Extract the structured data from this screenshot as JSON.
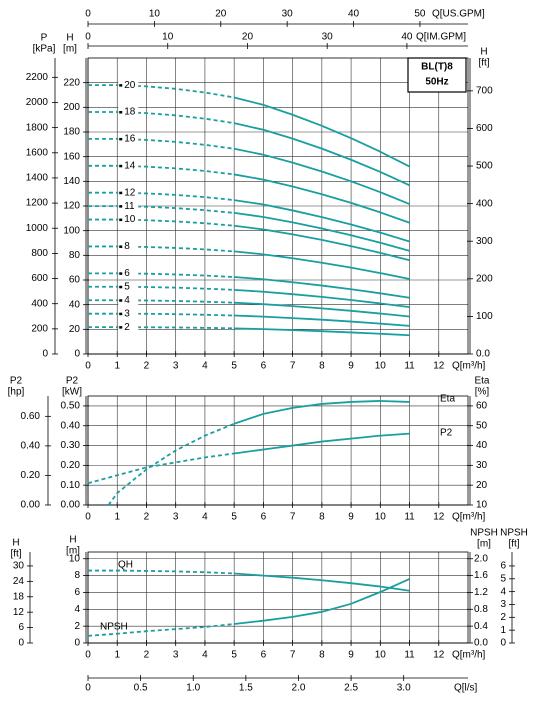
{
  "chart_data": [
    {
      "type": "line",
      "box_label": [
        "BL(T)8",
        "50Hz"
      ],
      "color": "#1a9fa0",
      "dashed_until": 5,
      "grid": true,
      "x": [
        0,
        1,
        2,
        3,
        4,
        5,
        6,
        7,
        8,
        9,
        10,
        11
      ],
      "xlim": [
        0,
        13
      ],
      "xticks": [
        0,
        1,
        2,
        3,
        4,
        5,
        6,
        7,
        8,
        9,
        10,
        11,
        12
      ],
      "x_label": "Q[m³/h]",
      "ylim": [
        0,
        240
      ],
      "yticks": [
        0,
        20,
        40,
        60,
        80,
        100,
        120,
        140,
        160,
        180,
        200,
        220
      ],
      "y_label": [
        "H",
        "[m]"
      ],
      "kpa_lim": [
        0,
        2353.7
      ],
      "kpa_ticks": [
        0,
        200,
        400,
        600,
        800,
        1000,
        1200,
        1400,
        1600,
        1800,
        2000,
        2200
      ],
      "kpa_label": [
        "P",
        "[kPa]"
      ],
      "ft_lim": [
        0,
        787.4
      ],
      "ft_ticks": [
        {
          "value": 0,
          "label": "0.0"
        },
        100,
        200,
        300,
        400,
        500,
        600,
        700
      ],
      "ft_label": [
        "H",
        "[ft]"
      ],
      "us_gpm_lim": [
        0,
        57.24
      ],
      "us_gpm_ticks": [
        0,
        10,
        20,
        30,
        40,
        50
      ],
      "us_gpm_label": "Q[US.GPM]",
      "im_gpm_lim": [
        0,
        47.66
      ],
      "im_gpm_ticks": [
        0,
        10,
        20,
        30,
        40
      ],
      "im_gpm_label": "Q[IM.GPM]",
      "series": [
        {
          "name": "20",
          "values": [
            218,
            218,
            217,
            215,
            212,
            208,
            202,
            194,
            185,
            175,
            164,
            152
          ]
        },
        {
          "name": "18",
          "values": [
            196.2,
            196.2,
            195.3,
            193.5,
            190.8,
            187.2,
            181.8,
            174.6,
            166.5,
            157.5,
            147.6,
            136.8
          ]
        },
        {
          "name": "16",
          "values": [
            174.4,
            174.4,
            173.6,
            172,
            169.6,
            166.4,
            161.6,
            155.2,
            148,
            140,
            131.2,
            121.6
          ]
        },
        {
          "name": "14",
          "values": [
            152.6,
            152.6,
            151.9,
            150.5,
            148.4,
            145.6,
            141.4,
            135.8,
            129.5,
            122.5,
            114.8,
            106.4
          ]
        },
        {
          "name": "12",
          "values": [
            130.8,
            130.8,
            130.2,
            129,
            127.2,
            124.8,
            121.2,
            116.4,
            111,
            105,
            98.4,
            91.2
          ]
        },
        {
          "name": "11",
          "values": [
            119.9,
            119.9,
            119.4,
            118.3,
            116.6,
            114.4,
            111.1,
            106.7,
            101.8,
            96.3,
            90.2,
            83.6
          ]
        },
        {
          "name": "10",
          "values": [
            109,
            109,
            108.5,
            107.5,
            106,
            104,
            101,
            97,
            92.5,
            87.5,
            82,
            76
          ]
        },
        {
          "name": "8",
          "values": [
            87.2,
            87.2,
            86.8,
            86,
            84.8,
            83.2,
            80.8,
            77.6,
            74,
            70,
            65.6,
            60.8
          ]
        },
        {
          "name": "6",
          "values": [
            65.4,
            65.4,
            65.1,
            64.5,
            63.6,
            62.4,
            60.6,
            58.2,
            55.5,
            52.5,
            49.2,
            45.6
          ]
        },
        {
          "name": "5",
          "values": [
            54.5,
            54.5,
            54.3,
            53.8,
            53,
            52,
            50.5,
            48.5,
            46.3,
            43.8,
            41,
            38
          ]
        },
        {
          "name": "4",
          "values": [
            43.6,
            43.6,
            43.4,
            43,
            42.4,
            41.6,
            40.4,
            38.8,
            37,
            35,
            32.8,
            30.4
          ]
        },
        {
          "name": "3",
          "values": [
            32.7,
            32.7,
            32.6,
            32.3,
            31.8,
            31.2,
            30.3,
            29.1,
            27.8,
            26.3,
            24.6,
            22.8
          ]
        },
        {
          "name": "2",
          "values": [
            21.8,
            21.8,
            21.7,
            21.5,
            21.2,
            20.8,
            20.2,
            19.4,
            18.5,
            17.5,
            16.4,
            15.2
          ]
        }
      ]
    },
    {
      "type": "line",
      "color": "#1a9fa0",
      "dashed_until": 5,
      "grid": true,
      "x": [
        0,
        1,
        2,
        3,
        4,
        5,
        6,
        7,
        8,
        9,
        10,
        11
      ],
      "xlim": [
        0,
        13
      ],
      "xticks": [
        0,
        1,
        2,
        3,
        4,
        5,
        6,
        7,
        8,
        9,
        10,
        11,
        12
      ],
      "x_label": "Q[m³/h]",
      "ylim": [
        0,
        0.55
      ],
      "yticks": [
        {
          "value": 0,
          "label": "0.00"
        },
        {
          "value": 0.1,
          "label": "0.10"
        },
        {
          "value": 0.2,
          "label": "0.20"
        },
        {
          "value": 0.3,
          "label": "0.30"
        },
        {
          "value": 0.4,
          "label": "0.40"
        },
        {
          "value": 0.5,
          "label": "0.50"
        }
      ],
      "y_label": [
        "P2",
        "[kW]"
      ],
      "hp_lim": [
        0,
        0.7376
      ],
      "hp_ticks": [
        {
          "value": 0,
          "label": "0.00"
        },
        {
          "value": 0.2,
          "label": "0.20"
        },
        {
          "value": 0.4,
          "label": "0.40"
        },
        {
          "value": 0.6,
          "label": "0.60"
        }
      ],
      "hp_label": [
        "P2",
        "[hp]"
      ],
      "y2lim": [
        10,
        65
      ],
      "y2ticks": [
        10,
        20,
        30,
        40,
        50,
        60
      ],
      "y2_label": [
        "Eta",
        "[%]"
      ],
      "series": [
        {
          "name": "Eta",
          "axis": "y2",
          "x": [
            0.7,
            1,
            2,
            3,
            4,
            5,
            6,
            7,
            8,
            9,
            10,
            11
          ],
          "values": [
            10,
            16,
            28,
            37.5,
            45,
            51,
            56,
            59,
            61,
            62,
            62.5,
            62
          ]
        },
        {
          "name": "P2",
          "values": [
            0.11,
            0.15,
            0.19,
            0.215,
            0.24,
            0.26,
            0.28,
            0.3,
            0.32,
            0.335,
            0.35,
            0.36
          ]
        }
      ]
    },
    {
      "type": "line",
      "color": "#1a9fa0",
      "dashed_until": 5,
      "grid": true,
      "x": [
        0,
        1,
        2,
        3,
        4,
        5,
        6,
        7,
        8,
        9,
        10,
        11
      ],
      "xlim": [
        0,
        13
      ],
      "xticks": [
        0,
        1,
        2,
        3,
        4,
        5,
        6,
        7,
        8,
        9,
        10,
        11,
        12
      ],
      "x_label": "Q[m³/h]",
      "ylim": [
        0,
        10.8
      ],
      "yticks": [
        0,
        2,
        4,
        6,
        8,
        10
      ],
      "y_label": [
        "H",
        "[m]"
      ],
      "ft_lim": [
        0,
        35.43
      ],
      "ft_ticks": [
        0,
        6,
        12,
        18,
        24,
        30
      ],
      "ft_label": [
        "H",
        "[ft]"
      ],
      "y2lim": [
        0,
        2.16
      ],
      "y2ticks": [
        {
          "value": 0,
          "label": "0.0"
        },
        0.4,
        0.8,
        1.2,
        1.6,
        {
          "value": 2,
          "label": "2.0"
        }
      ],
      "y2_label": [
        "NPSH",
        "[m]"
      ],
      "npsh_ft_lim": [
        0,
        7.087
      ],
      "npsh_ft_ticks": [
        0,
        1,
        2,
        3,
        4,
        5,
        6
      ],
      "npsh_ft_label": [
        "NPSH",
        "[ft]"
      ],
      "ls_lim": [
        0,
        3.611
      ],
      "ls_ticks": [
        0,
        0.5,
        {
          "value": 1,
          "label": "1.0"
        },
        1.5,
        {
          "value": 2,
          "label": "2.0"
        },
        2.5,
        {
          "value": 3,
          "label": "3.0"
        }
      ],
      "ls_label": "Q[l/s]",
      "series": [
        {
          "name": "QH",
          "values": [
            8.6,
            8.6,
            8.55,
            8.5,
            8.4,
            8.25,
            8,
            7.75,
            7.45,
            7.1,
            6.7,
            6.2
          ]
        },
        {
          "name": "NPSH",
          "axis": "y2",
          "values": [
            0.17,
            0.22,
            0.28,
            0.33,
            0.38,
            0.45,
            0.53,
            0.62,
            0.74,
            0.93,
            1.21,
            1.52
          ]
        }
      ]
    }
  ]
}
